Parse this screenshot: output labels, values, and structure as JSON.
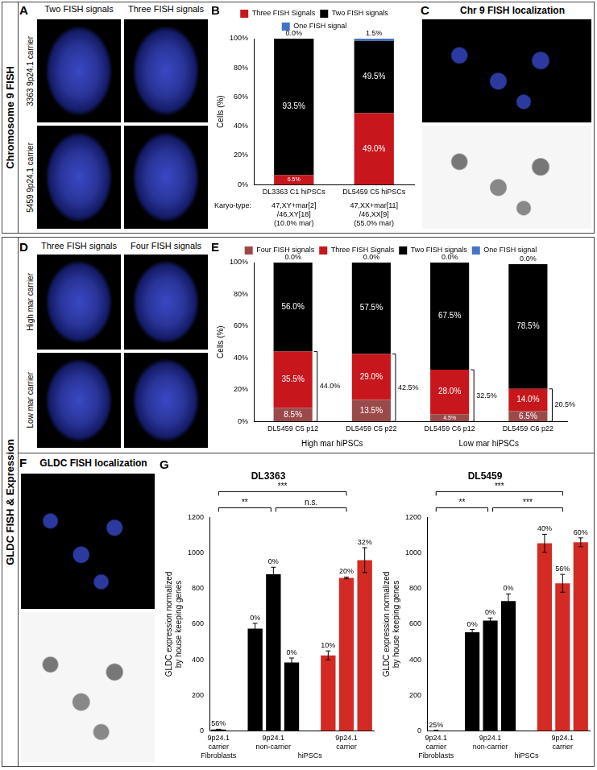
{
  "sections": [
    {
      "label": "Chromosome 9 FISH"
    },
    {
      "label": "GLDC FISH & Expression"
    }
  ],
  "image_panels": [
    {
      "letter": "A",
      "columns": [
        "Two FISH signals",
        "Three FISH signals"
      ],
      "rows": [
        "3363 9p24.1 carrier",
        "5459 9p24.1 carrier"
      ]
    },
    {
      "letter": "C",
      "title": "Chr 9 FISH localization"
    },
    {
      "letter": "D",
      "columns": [
        "Three FISH signals",
        "Four FISH signals"
      ],
      "rows": [
        "High mar carrier",
        "Low mar carrier"
      ]
    },
    {
      "letter": "F",
      "title": "GLDC FISH localization"
    }
  ],
  "chart_data": [
    {
      "letter": "B",
      "type": "bar",
      "stacked": true,
      "data_labels": true,
      "grid": false,
      "legend": "top",
      "categories": [
        "DL3363 C1 hiPSCs",
        "DL5459 C5 hiPSCs"
      ],
      "series": [
        {
          "name": "Three FISH Signals",
          "color": "#c8161d",
          "values": [
            6.5,
            49.0
          ],
          "value_labels": [
            "6.5%",
            "49.0%"
          ]
        },
        {
          "name": "Two FISH signals",
          "color": "#000000",
          "values": [
            93.5,
            49.5
          ],
          "value_labels": [
            "93.5%",
            "49.5%"
          ]
        },
        {
          "name": "One FISH signal",
          "color": "#4472c4",
          "values": [
            0.0,
            1.5
          ],
          "value_labels": [
            "0.0%",
            "1.5%"
          ]
        }
      ],
      "ylim": [
        0,
        100
      ],
      "yticks": [
        {
          "value": 0,
          "label": "0%"
        },
        {
          "value": 20,
          "label": "20%"
        },
        {
          "value": 40,
          "label": "40%"
        },
        {
          "value": 60,
          "label": "60%"
        },
        {
          "value": 80,
          "label": "80%"
        },
        {
          "value": 100,
          "label": "100%"
        }
      ],
      "y_label": "Cells (%)",
      "row_label": "Karyo-type:",
      "row_texts": [
        "47,XY+mar[2]/46,XY[18] (10.0% mar)",
        "47,XX+mar[11]/46,XX[9] (55.0% mar)"
      ]
    },
    {
      "letter": "E",
      "type": "bar",
      "stacked": true,
      "data_labels": true,
      "grid": false,
      "legend": "top",
      "categories": [
        "DL5459 C5 p12",
        "DL5459 C5 p22",
        "DL5459 C6 p12",
        "DL5459 C6 p22"
      ],
      "series": [
        {
          "name": "Four FISH signals",
          "color": "#9b4a4a",
          "values": [
            8.5,
            13.5,
            4.5,
            6.5
          ],
          "value_labels": [
            "8.5%",
            "13.5%",
            "4.5%",
            "6.5%"
          ]
        },
        {
          "name": "Three FISH Signals",
          "color": "#c8161d",
          "values": [
            35.5,
            29.0,
            28.0,
            14.0
          ],
          "value_labels": [
            "35.5%",
            "29.0%",
            "28.0%",
            "14.0%"
          ]
        },
        {
          "name": "Two FISH signals",
          "color": "#000000",
          "values": [
            56.0,
            57.5,
            67.5,
            78.5
          ],
          "value_labels": [
            "56.0%",
            "57.5%",
            "67.5%",
            "78.5%"
          ]
        },
        {
          "name": "One FISH signal",
          "color": "#4472c4",
          "values": [
            0.0,
            0.0,
            0.0,
            0.0
          ],
          "value_labels": [
            "0.0%",
            "0.0%",
            "0.0%",
            "0.0%"
          ]
        }
      ],
      "totals": {
        "values": [
          44.0,
          42.5,
          32.5,
          20.5
        ],
        "value_labels": [
          "44.0%",
          "42.5%",
          "32.5%",
          "20.5%"
        ]
      },
      "groups": [
        {
          "label": "High mar hiPSCs",
          "categories": [
            "DL5459 C5 p12",
            "DL5459 C5 p22"
          ]
        },
        {
          "label": "Low mar hiPSCs",
          "categories": [
            "DL5459 C6 p12",
            "DL5459 C6 p22"
          ]
        }
      ],
      "ylim": [
        0,
        100
      ],
      "yticks": [
        {
          "value": 0,
          "label": "0%"
        },
        {
          "value": 20,
          "label": "20%"
        },
        {
          "value": 40,
          "label": "40%"
        },
        {
          "value": 60,
          "label": "60%"
        },
        {
          "value": 80,
          "label": "80%"
        },
        {
          "value": 100,
          "label": "100%"
        }
      ],
      "y_label": "Cells (%)"
    },
    {
      "letter": "G",
      "type": "bar",
      "title": "DL3363",
      "grid": false,
      "categories": [
        "9p24.1 carrier",
        null,
        null,
        "9p24.1 non-carrier",
        null,
        null,
        null,
        "9p24.1 carrier",
        null
      ],
      "group_categories": [
        "Fibroblasts",
        null,
        null,
        null,
        null,
        "hiPSCs",
        null,
        null,
        null
      ],
      "values": [
        8,
        null,
        575,
        880,
        385,
        null,
        425,
        860,
        960
      ],
      "errors": [
        2,
        null,
        30,
        40,
        25,
        null,
        25,
        5,
        70
      ],
      "colors": [
        "#000000",
        null,
        "#000000",
        "#000000",
        "#000000",
        null,
        "#d42a24",
        "#d42a24",
        "#d42a24"
      ],
      "bar_notes": [
        "56%",
        null,
        "0%",
        "0%",
        "0%",
        null,
        "10%",
        "20%",
        "32%"
      ],
      "significance": [
        "***",
        "**",
        "n.s."
      ],
      "ylim": [
        0,
        1200
      ],
      "yticks": [
        0,
        200,
        400,
        600,
        800,
        1000,
        1200
      ],
      "y_label": "GLDC expression normalized by house keeping genes"
    },
    {
      "type": "bar",
      "title": "DL5459",
      "grid": false,
      "categories": [
        "9p24.1 carrier",
        null,
        null,
        "9p24.1 non-carrier",
        null,
        null,
        null,
        "9p24.1 carrier",
        null
      ],
      "group_categories": [
        "Fibroblasts",
        null,
        null,
        null,
        null,
        "hiPSCs",
        null,
        null,
        null
      ],
      "values": [
        3,
        null,
        555,
        620,
        730,
        null,
        1055,
        830,
        1060
      ],
      "errors": [
        1,
        null,
        15,
        15,
        40,
        null,
        50,
        50,
        25
      ],
      "colors": [
        "#000000",
        null,
        "#000000",
        "#000000",
        "#000000",
        null,
        "#d42a24",
        "#d42a24",
        "#d42a24"
      ],
      "bar_notes": [
        "25%",
        null,
        "0%",
        "0%",
        "0%",
        null,
        "40%",
        "56%",
        "60%"
      ],
      "significance": [
        "***",
        "**",
        "***"
      ],
      "ylim": [
        0,
        1200
      ],
      "yticks": [
        0,
        200,
        400,
        600,
        800,
        1000,
        1200
      ],
      "y_label": "GLDC expression normalized by house keeping genes"
    }
  ]
}
